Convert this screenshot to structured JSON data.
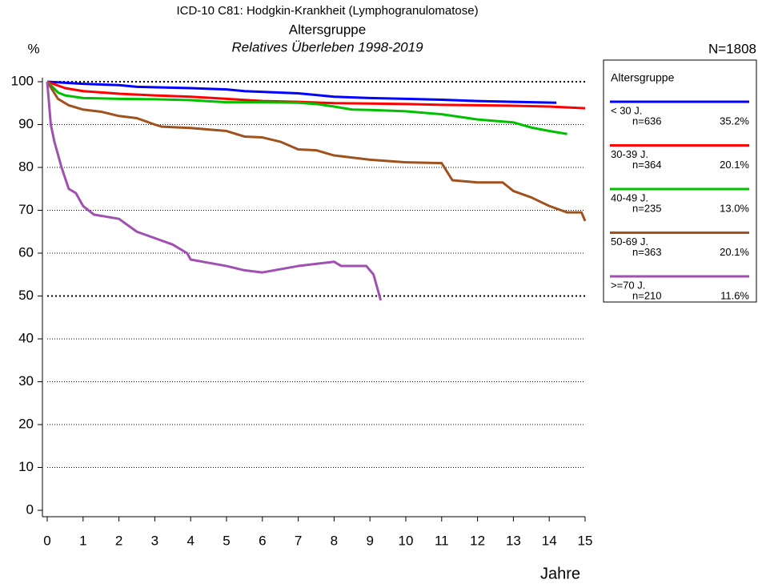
{
  "chart_data": {
    "type": "line",
    "title": "ICD-10 C81: Hodgkin-Krankheit (Lymphogranulomatose)",
    "subtitle": "Altersgruppe",
    "subtitle2": "Relatives Überleben 1998-2019",
    "y_label": "%",
    "x_label": "Jahre",
    "n_total": "N=1808",
    "legend_title": "Altersgruppe",
    "xlim": [
      0,
      15
    ],
    "xticks": [
      0,
      1,
      2,
      3,
      4,
      5,
      6,
      7,
      8,
      9,
      10,
      11,
      12,
      13,
      14,
      15
    ],
    "ylim": [
      0,
      100
    ],
    "yticks": [
      0,
      10,
      20,
      30,
      40,
      50,
      60,
      70,
      80,
      90,
      100
    ],
    "bold_gridlines": [
      50,
      100
    ],
    "grid": true,
    "series": [
      {
        "name": "< 30 J.",
        "n": "n=636",
        "share": "35.2%",
        "color": "#0000ff",
        "x": [
          0,
          1,
          2,
          2.5,
          4,
          5,
          5.5,
          7,
          8,
          9,
          10,
          11,
          12,
          13,
          14.2
        ],
        "values": [
          100,
          99.5,
          99.2,
          98.8,
          98.5,
          98.2,
          97.8,
          97.3,
          96.5,
          96.2,
          96,
          95.8,
          95.5,
          95.3,
          95.1
        ]
      },
      {
        "name": "30-39 J.",
        "n": "n=364",
        "share": "20.1%",
        "color": "#ff0000",
        "x": [
          0,
          0.5,
          1,
          2,
          3,
          4,
          5,
          6,
          7,
          8,
          9,
          10,
          11,
          12,
          13,
          14,
          15
        ],
        "values": [
          100,
          98.5,
          97.8,
          97.2,
          96.8,
          96.5,
          96,
          95.5,
          95.3,
          95,
          94.9,
          94.8,
          94.6,
          94.5,
          94.4,
          94.2,
          93.8
        ]
      },
      {
        "name": "40-49 J.",
        "n": "n=235",
        "share": "13.0%",
        "color": "#00c000",
        "x": [
          0,
          0.3,
          0.5,
          1,
          2,
          3,
          4,
          5,
          6,
          7,
          7.5,
          8,
          8.5,
          9,
          10,
          11,
          12,
          13,
          13.5,
          14,
          14.5
        ],
        "values": [
          100,
          97.5,
          96.8,
          96.2,
          96,
          95.9,
          95.7,
          95.2,
          95.2,
          95.1,
          94.8,
          94.2,
          93.5,
          93.4,
          93.1,
          92.4,
          91.2,
          90.5,
          89.3,
          88.5,
          87.8
        ]
      },
      {
        "name": "50-69 J.",
        "n": "n=363",
        "share": "20.1%",
        "color": "#a0521e",
        "x": [
          0,
          0.3,
          0.6,
          1,
          1.5,
          2,
          2.5,
          3,
          3.2,
          4,
          5,
          5.5,
          6,
          6.5,
          7,
          7.5,
          8,
          9,
          10,
          11,
          11.3,
          12,
          12.7,
          13,
          13.5,
          14,
          14.5,
          14.9,
          15
        ],
        "values": [
          100,
          96,
          94.5,
          93.5,
          93,
          92,
          91.5,
          90,
          89.5,
          89.2,
          88.5,
          87.2,
          87,
          86,
          84.2,
          84,
          82.8,
          81.8,
          81.2,
          81,
          77,
          76.5,
          76.5,
          74.5,
          73,
          71,
          69.5,
          69.5,
          67.5
        ]
      },
      {
        "name": ">=70 J.",
        "n": "n=210",
        "share": "11.6%",
        "color": "#a050b0",
        "x": [
          0,
          0.1,
          0.2,
          0.4,
          0.6,
          0.8,
          1,
          1.3,
          2,
          2.5,
          3,
          3.5,
          3.9,
          4,
          5,
          5.5,
          6,
          7,
          8,
          8.2,
          8.9,
          9.1,
          9.3
        ],
        "values": [
          100,
          90,
          86,
          80,
          75,
          74,
          71,
          69,
          68,
          65,
          63.5,
          62,
          60,
          58.5,
          57,
          56,
          55.5,
          57,
          58,
          57,
          57,
          55,
          49
        ]
      }
    ]
  }
}
